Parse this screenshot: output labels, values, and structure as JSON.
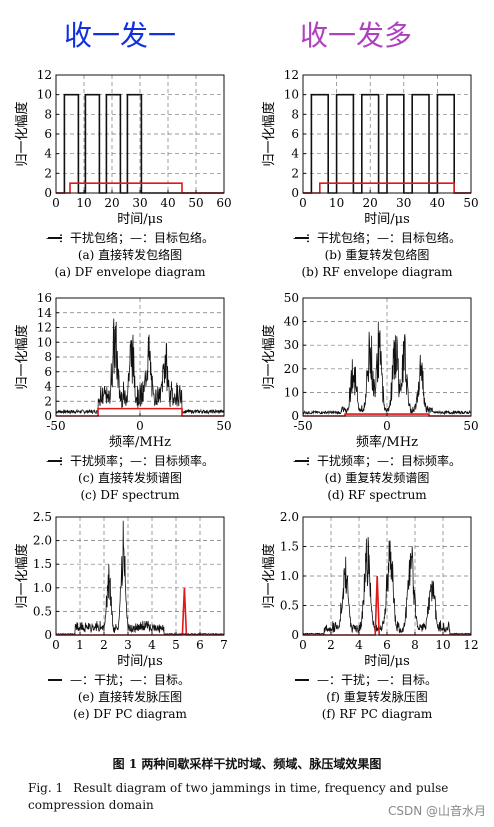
{
  "header": {
    "left": "收一发一",
    "right": "收一发多"
  },
  "chart_data": [
    {
      "id": "a",
      "type": "line",
      "xlabel": "时间/μs",
      "ylabel": "归一化幅度",
      "xlim": [
        0,
        60
      ],
      "ylim": [
        0,
        12
      ],
      "xticks": [
        0,
        10,
        20,
        30,
        40,
        50,
        60
      ],
      "yticks": [
        0,
        2,
        4,
        6,
        8,
        10,
        12
      ],
      "legend": "—：干扰包络；—：目标包络。",
      "caption_cn": "(a) 直接转发包络图",
      "caption_en": "(a) DF envelope diagram",
      "jam_pulses": [
        [
          3,
          8
        ],
        [
          10.5,
          15.5
        ],
        [
          18,
          23
        ],
        [
          25.5,
          30.5
        ]
      ],
      "jam_level": 10,
      "target": {
        "start": 5,
        "end": 45,
        "level": 1
      }
    },
    {
      "id": "b",
      "type": "line",
      "xlabel": "时间/μs",
      "ylabel": "归一化幅度",
      "xlim": [
        0,
        50
      ],
      "ylim": [
        0,
        12
      ],
      "xticks": [
        0,
        10,
        20,
        30,
        40,
        50
      ],
      "yticks": [
        0,
        2,
        4,
        6,
        8,
        10,
        12
      ],
      "legend": "—：干扰包络；—：目标包络。",
      "caption_cn": "(b) 重复转发包络图",
      "caption_en": "(b) RF envelope diagram",
      "jam_pulses": [
        [
          2.5,
          7.5
        ],
        [
          10,
          15
        ],
        [
          17.5,
          22.5
        ],
        [
          25,
          30
        ],
        [
          32.5,
          37.5
        ],
        [
          40,
          45
        ]
      ],
      "jam_level": 10,
      "target": {
        "start": 5,
        "end": 45,
        "level": 1
      }
    },
    {
      "id": "c",
      "type": "line",
      "xlabel": "频率/MHz",
      "ylabel": "归一化幅度",
      "xlim": [
        -50,
        50
      ],
      "ylim": [
        0,
        16
      ],
      "xticks": [
        -50,
        0,
        50
      ],
      "yticks": [
        0,
        2,
        4,
        6,
        8,
        10,
        12,
        14,
        16
      ],
      "legend": "—：干扰频率；—：目标频率。",
      "caption_cn": "(c) 直接转发频谱图",
      "caption_en": "(c) DF spectrum",
      "peaks": [
        [
          -15,
          14.5
        ],
        [
          -5,
          12.5
        ],
        [
          5,
          12
        ],
        [
          15,
          11
        ]
      ],
      "floor": 0.6,
      "halfwidth": 25,
      "target": {
        "start": -25,
        "end": 25,
        "level": 1
      }
    },
    {
      "id": "d",
      "type": "line",
      "xlabel": "频率/MHz",
      "ylabel": "归一化幅度",
      "xlim": [
        -50,
        50
      ],
      "ylim": [
        0,
        50
      ],
      "xticks": [
        -50,
        0,
        50
      ],
      "yticks": [
        0,
        10,
        20,
        30,
        40,
        50
      ],
      "legend": "—：干扰频率；—：目标频率。",
      "caption_cn": "(d) 重复转发频谱图",
      "caption_en": "(d) RF spectrum",
      "peaks": [
        [
          -20,
          27
        ],
        [
          -10,
          38
        ],
        [
          -5,
          41
        ],
        [
          5,
          39
        ],
        [
          10,
          38
        ],
        [
          20,
          27
        ]
      ],
      "floor": 1.5,
      "halfwidth": 27,
      "target": {
        "start": -25,
        "end": 25,
        "level": 0.8
      }
    },
    {
      "id": "e",
      "type": "line",
      "xlabel": "时间/μs",
      "ylabel": "归一化幅度",
      "xlim": [
        0,
        7
      ],
      "ylim": [
        0,
        2.5
      ],
      "xticks": [
        0,
        1,
        2,
        3,
        4,
        5,
        6,
        7
      ],
      "yticks": [
        0,
        0.5,
        1.0,
        1.5,
        2.0,
        2.5
      ],
      "legend": "—：干扰；—：目标。",
      "caption_cn": "(e) 直接转发脉压图",
      "caption_en": "(e) DF PC diagram",
      "peaks": [
        [
          2.2,
          1.6
        ],
        [
          2.8,
          2.5
        ]
      ],
      "span": [
        0.8,
        4.5
      ],
      "floor": 0.15,
      "target": {
        "pos": 5.35,
        "level": 1.0
      }
    },
    {
      "id": "f",
      "type": "line",
      "xlabel": "时间/μs",
      "ylabel": "归一化幅度",
      "xlim": [
        0,
        12
      ],
      "ylim": [
        0,
        2.0
      ],
      "xticks": [
        0,
        2,
        4,
        6,
        8,
        10,
        12
      ],
      "yticks": [
        0,
        0.5,
        1.0,
        1.5,
        2.0
      ],
      "legend": "—：干扰；—：目标。",
      "caption_cn": "(f) 重复转发脉压图",
      "caption_en": "(f) RF PC diagram",
      "peaks": [
        [
          3,
          1.4
        ],
        [
          4.6,
          1.8
        ],
        [
          6.2,
          1.9
        ],
        [
          7.7,
          1.8
        ],
        [
          9.2,
          1.2
        ]
      ],
      "span": [
        1.5,
        10.5
      ],
      "floor": 0.12,
      "target": {
        "pos": 5.3,
        "level": 1.0
      }
    }
  ],
  "figure": {
    "caption_cn": "图 1   两种间歇采样干扰时域、频域、脉压域效果图",
    "label_en": "Fig. 1",
    "caption_en": "Result diagram of two jammings in time, frequency and pulse compression domain"
  },
  "watermark": "CSDN @山音水月",
  "colors": {
    "jam": "#111111",
    "target": "#e01818",
    "grid": "#777777"
  }
}
